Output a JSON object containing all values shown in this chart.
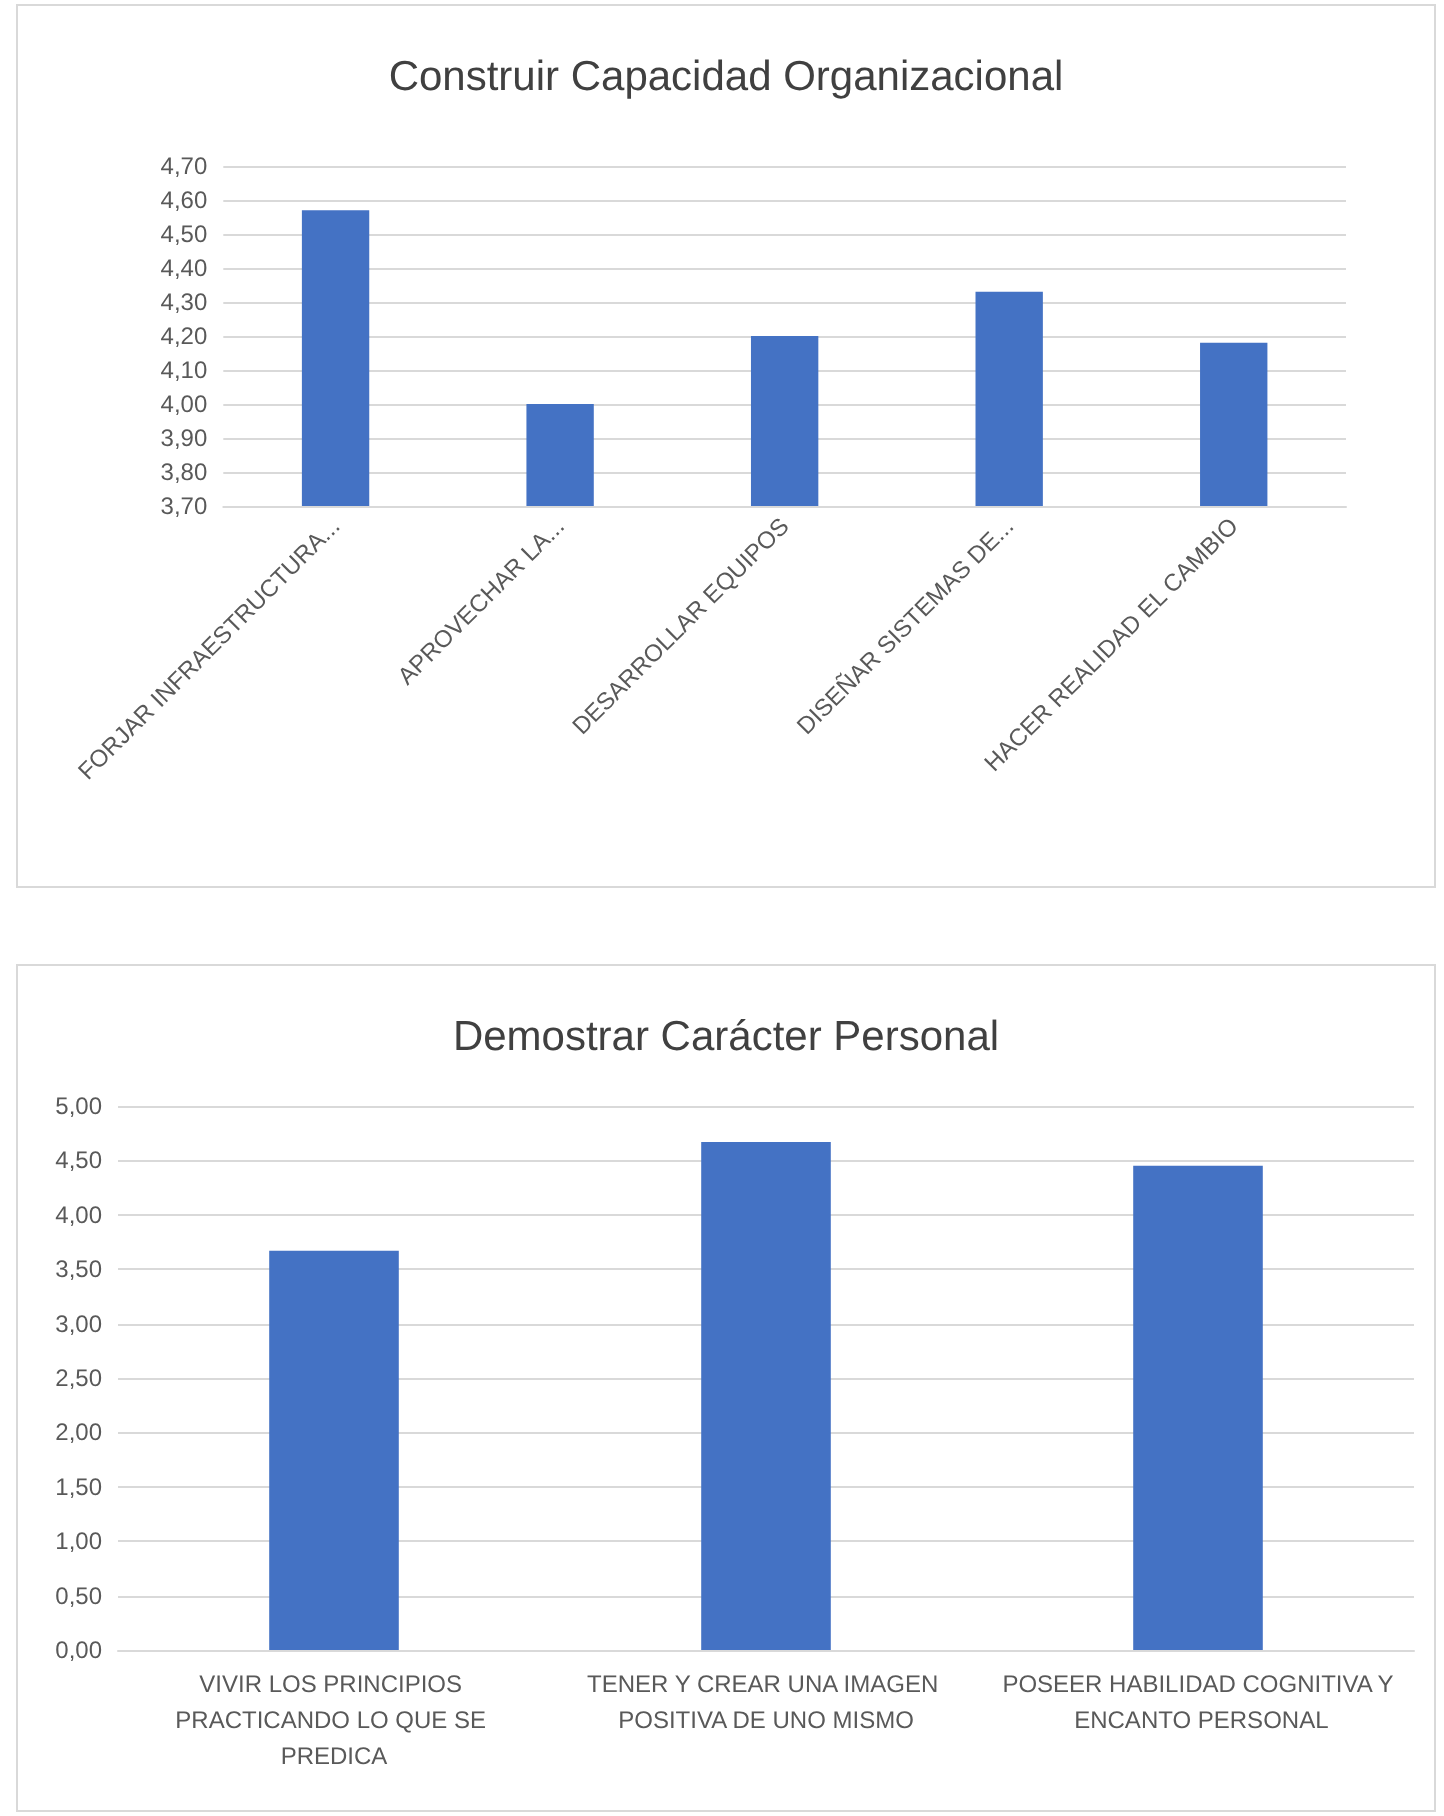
{
  "chart_data": [
    {
      "type": "bar",
      "title": "Construir Capacidad Organizacional",
      "categories": [
        "FORJAR INFRAESTRUCTURA...",
        "APROVECHAR LA...",
        "DESARROLLAR EQUIPOS",
        "DISEÑAR SISTEMAS DE...",
        "HACER REALIDAD EL CAMBIO"
      ],
      "values": [
        4.57,
        4.0,
        4.2,
        4.33,
        4.18
      ],
      "color": "#4472c4",
      "ylim": [
        3.7,
        4.7
      ],
      "yticks": [
        {
          "value": 3.7,
          "label": "3,70"
        },
        {
          "value": 3.8,
          "label": "3,80"
        },
        {
          "value": 3.9,
          "label": "3,90"
        },
        {
          "value": 4.0,
          "label": "4,00"
        },
        {
          "value": 4.1,
          "label": "4,10"
        },
        {
          "value": 4.2,
          "label": "4,20"
        },
        {
          "value": 4.3,
          "label": "4,30"
        },
        {
          "value": 4.4,
          "label": "4,40"
        },
        {
          "value": 4.5,
          "label": "4,50"
        },
        {
          "value": 4.6,
          "label": "4,60"
        },
        {
          "value": 4.7,
          "label": "4,70"
        }
      ],
      "grid": "y"
    },
    {
      "type": "bar",
      "title": "Demostrar Carácter Personal",
      "categories": [
        "VIVIR LOS PRINCIPIOS PRACTICANDO LO QUE SE PREDICA",
        "TENER Y CREAR UNA IMAGEN POSITIVA DE UNO MISMO",
        "POSEER HABILIDAD COGNITIVA Y ENCANTO PERSONAL"
      ],
      "values": [
        3.67,
        4.67,
        4.45
      ],
      "color": "#4472c4",
      "ylim": [
        0,
        5
      ],
      "yticks": [
        {
          "value": 0,
          "label": "0,00"
        },
        {
          "value": 0.5,
          "label": "0,50"
        },
        {
          "value": 1,
          "label": "1,00"
        },
        {
          "value": 1.5,
          "label": "1,50"
        },
        {
          "value": 2,
          "label": "2,00"
        },
        {
          "value": 2.5,
          "label": "2,50"
        },
        {
          "value": 3,
          "label": "3,00"
        },
        {
          "value": 3.5,
          "label": "3,50"
        },
        {
          "value": 4,
          "label": "4,00"
        },
        {
          "value": 4.5,
          "label": "4,50"
        },
        {
          "value": 5,
          "label": "5,00"
        }
      ],
      "grid": "y"
    }
  ]
}
